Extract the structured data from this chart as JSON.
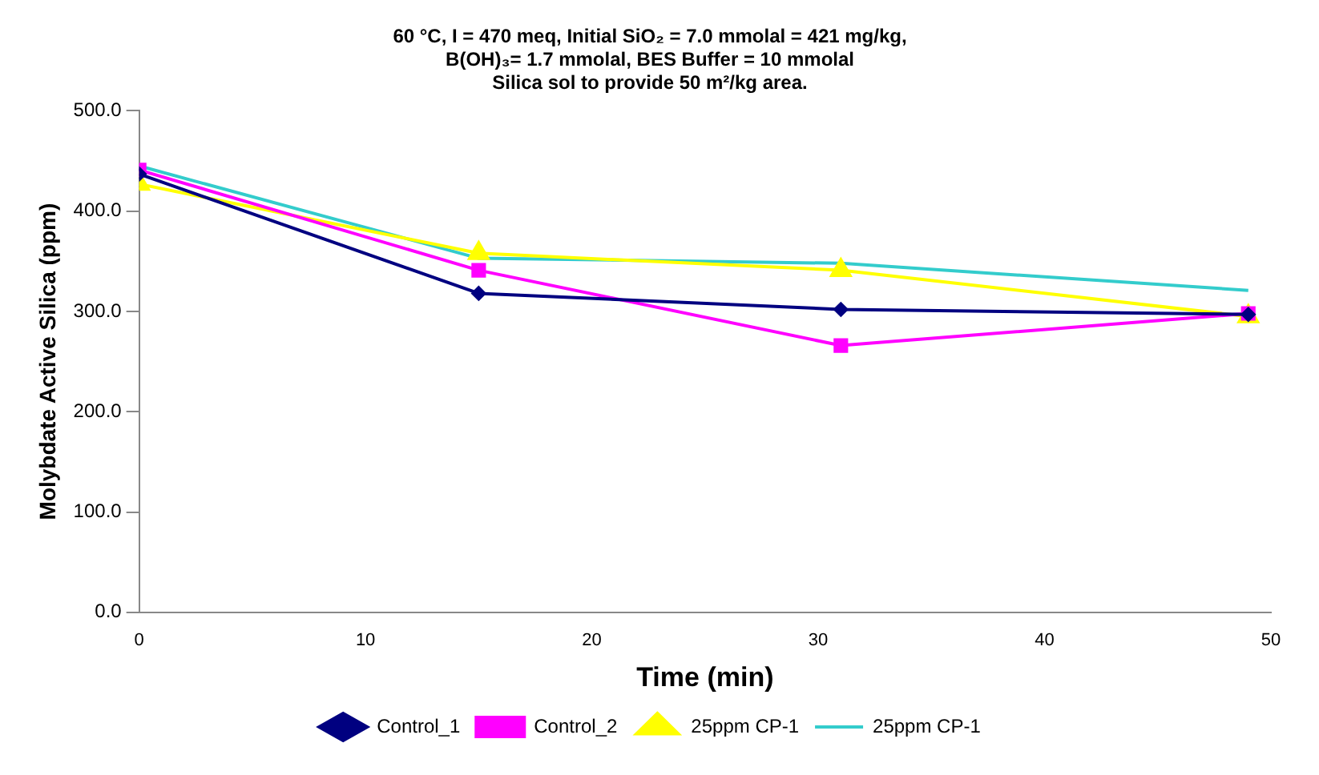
{
  "chart_data": {
    "type": "line",
    "title": "60 °C, I = 470 meq, Initial SiO₂ = 7.0 mmolal = 421 mg/kg,",
    "subtitle": "B(OH)₃= 1.7 mmolal, BES Buffer = 10 mmolal\nSilica sol to provide 50 m²/kg area.",
    "xlabel": "Time (min)",
    "ylabel": "Molybdate Active Silica (ppm)",
    "x": [
      0,
      15,
      31,
      49
    ],
    "series": [
      {
        "name": "Control_1",
        "color": "#000080",
        "marker": "diamond",
        "values": [
          437,
          318,
          302,
          297
        ]
      },
      {
        "name": "Control_2",
        "color": "#ff00ff",
        "marker": "square",
        "values": [
          441,
          341,
          266,
          298
        ]
      },
      {
        "name": "25ppm CP-1",
        "color": "#ffff00",
        "marker": "triangle",
        "values": [
          427,
          358,
          341,
          295
        ]
      },
      {
        "name": "25ppm CP-1",
        "color": "#33cccc",
        "marker": "none",
        "values": [
          445,
          353,
          348,
          321
        ]
      }
    ],
    "xlim": [
      0,
      50
    ],
    "xticks": [
      0,
      10,
      20,
      30,
      40,
      50
    ],
    "ylim": [
      0,
      500
    ],
    "yticks": [
      {
        "value": 0,
        "label": "0.0"
      },
      {
        "value": 100,
        "label": "100.0"
      },
      {
        "value": 200,
        "label": "200.0"
      },
      {
        "value": 300,
        "label": "300.0"
      },
      {
        "value": 400,
        "label": "400.0"
      },
      {
        "value": 500,
        "label": "500.0"
      }
    ],
    "grid": false,
    "legend": "bottom",
    "line_style": "solid"
  }
}
